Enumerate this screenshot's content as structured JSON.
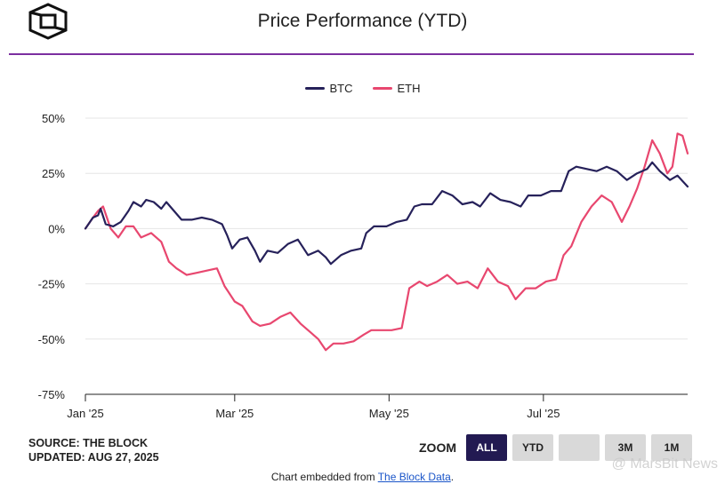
{
  "header": {
    "title": "Price Performance (YTD)"
  },
  "legend": {
    "btc_label": "BTC",
    "eth_label": "ETH"
  },
  "colors": {
    "btc": "#26215a",
    "eth": "#e8476f",
    "accent": "#7b2fa0"
  },
  "footer": {
    "source": "SOURCE: THE BLOCK",
    "updated": "UPDATED: AUG 27, 2025",
    "zoom_label": "ZOOM",
    "zoom_buttons": [
      "ALL",
      "YTD",
      "",
      "3M",
      "1M"
    ],
    "embed_prefix": "Chart embedded from ",
    "embed_link": "The Block Data",
    "embed_suffix": "."
  },
  "watermark": "@ MarsBit News",
  "chart_data": {
    "type": "line",
    "title": "Price Performance (YTD)",
    "xlabel": "",
    "ylabel": "",
    "ylim": [
      -75,
      50
    ],
    "yticks": [
      50,
      25,
      0,
      -25,
      -50,
      -75
    ],
    "ytick_labels": [
      "50%",
      "25%",
      "0%",
      "-25%",
      "-50%",
      "-75%"
    ],
    "xlim": [
      "2025-01-01",
      "2025-08-27"
    ],
    "xticks": [
      {
        "date": "2025-01-01",
        "label": "Jan '25"
      },
      {
        "date": "2025-03-01",
        "label": "Mar '25"
      },
      {
        "date": "2025-05-01",
        "label": "May '25"
      },
      {
        "date": "2025-07-01",
        "label": "Jul '25"
      }
    ],
    "grid": "horizontal",
    "legend_position": "top-center",
    "series": [
      {
        "name": "BTC",
        "color": "#26215a",
        "points": [
          [
            "2025-01-01",
            0
          ],
          [
            "2025-01-04",
            5
          ],
          [
            "2025-01-06",
            6
          ],
          [
            "2025-01-07",
            9
          ],
          [
            "2025-01-09",
            2
          ],
          [
            "2025-01-12",
            1
          ],
          [
            "2025-01-15",
            3
          ],
          [
            "2025-01-18",
            8
          ],
          [
            "2025-01-20",
            12
          ],
          [
            "2025-01-23",
            10
          ],
          [
            "2025-01-25",
            13
          ],
          [
            "2025-01-28",
            12
          ],
          [
            "2025-01-31",
            9
          ],
          [
            "2025-02-02",
            12
          ],
          [
            "2025-02-05",
            8
          ],
          [
            "2025-02-08",
            4
          ],
          [
            "2025-02-12",
            4
          ],
          [
            "2025-02-16",
            5
          ],
          [
            "2025-02-20",
            4
          ],
          [
            "2025-02-24",
            2
          ],
          [
            "2025-02-26",
            -3
          ],
          [
            "2025-02-28",
            -9
          ],
          [
            "2025-03-03",
            -5
          ],
          [
            "2025-03-06",
            -4
          ],
          [
            "2025-03-09",
            -10
          ],
          [
            "2025-03-11",
            -15
          ],
          [
            "2025-03-14",
            -10
          ],
          [
            "2025-03-18",
            -11
          ],
          [
            "2025-03-22",
            -7
          ],
          [
            "2025-03-26",
            -5
          ],
          [
            "2025-03-30",
            -12
          ],
          [
            "2025-04-03",
            -10
          ],
          [
            "2025-04-06",
            -13
          ],
          [
            "2025-04-08",
            -16
          ],
          [
            "2025-04-12",
            -12
          ],
          [
            "2025-04-16",
            -10
          ],
          [
            "2025-04-20",
            -9
          ],
          [
            "2025-04-22",
            -2
          ],
          [
            "2025-04-25",
            1
          ],
          [
            "2025-04-30",
            1
          ],
          [
            "2025-05-04",
            3
          ],
          [
            "2025-05-08",
            4
          ],
          [
            "2025-05-11",
            10
          ],
          [
            "2025-05-14",
            11
          ],
          [
            "2025-05-18",
            11
          ],
          [
            "2025-05-22",
            17
          ],
          [
            "2025-05-26",
            15
          ],
          [
            "2025-05-30",
            11
          ],
          [
            "2025-06-03",
            12
          ],
          [
            "2025-06-06",
            10
          ],
          [
            "2025-06-10",
            16
          ],
          [
            "2025-06-14",
            13
          ],
          [
            "2025-06-18",
            12
          ],
          [
            "2025-06-22",
            10
          ],
          [
            "2025-06-25",
            15
          ],
          [
            "2025-06-30",
            15
          ],
          [
            "2025-07-04",
            17
          ],
          [
            "2025-07-08",
            17
          ],
          [
            "2025-07-11",
            26
          ],
          [
            "2025-07-14",
            28
          ],
          [
            "2025-07-18",
            27
          ],
          [
            "2025-07-22",
            26
          ],
          [
            "2025-07-26",
            28
          ],
          [
            "2025-07-30",
            26
          ],
          [
            "2025-08-03",
            22
          ],
          [
            "2025-08-07",
            25
          ],
          [
            "2025-08-11",
            27
          ],
          [
            "2025-08-13",
            30
          ],
          [
            "2025-08-16",
            26
          ],
          [
            "2025-08-20",
            22
          ],
          [
            "2025-08-23",
            24
          ],
          [
            "2025-08-27",
            19
          ]
        ]
      },
      {
        "name": "ETH",
        "color": "#e8476f",
        "points": [
          [
            "2025-01-01",
            0
          ],
          [
            "2025-01-04",
            5
          ],
          [
            "2025-01-06",
            8
          ],
          [
            "2025-01-08",
            10
          ],
          [
            "2025-01-11",
            0
          ],
          [
            "2025-01-14",
            -4
          ],
          [
            "2025-01-17",
            1
          ],
          [
            "2025-01-20",
            1
          ],
          [
            "2025-01-23",
            -4
          ],
          [
            "2025-01-27",
            -2
          ],
          [
            "2025-01-31",
            -6
          ],
          [
            "2025-02-03",
            -15
          ],
          [
            "2025-02-06",
            -18
          ],
          [
            "2025-02-10",
            -21
          ],
          [
            "2025-02-14",
            -20
          ],
          [
            "2025-02-18",
            -19
          ],
          [
            "2025-02-22",
            -18
          ],
          [
            "2025-02-25",
            -26
          ],
          [
            "2025-03-01",
            -33
          ],
          [
            "2025-03-04",
            -35
          ],
          [
            "2025-03-08",
            -42
          ],
          [
            "2025-03-11",
            -44
          ],
          [
            "2025-03-15",
            -43
          ],
          [
            "2025-03-19",
            -40
          ],
          [
            "2025-03-23",
            -38
          ],
          [
            "2025-03-27",
            -43
          ],
          [
            "2025-03-31",
            -47
          ],
          [
            "2025-04-03",
            -50
          ],
          [
            "2025-04-06",
            -55
          ],
          [
            "2025-04-09",
            -52
          ],
          [
            "2025-04-13",
            -52
          ],
          [
            "2025-04-17",
            -51
          ],
          [
            "2025-04-21",
            -48
          ],
          [
            "2025-04-24",
            -46
          ],
          [
            "2025-04-28",
            -46
          ],
          [
            "2025-05-02",
            -46
          ],
          [
            "2025-05-06",
            -45
          ],
          [
            "2025-05-09",
            -27
          ],
          [
            "2025-05-13",
            -24
          ],
          [
            "2025-05-16",
            -26
          ],
          [
            "2025-05-20",
            -24
          ],
          [
            "2025-05-24",
            -21
          ],
          [
            "2025-05-28",
            -25
          ],
          [
            "2025-06-01",
            -24
          ],
          [
            "2025-06-05",
            -27
          ],
          [
            "2025-06-09",
            -18
          ],
          [
            "2025-06-13",
            -24
          ],
          [
            "2025-06-17",
            -26
          ],
          [
            "2025-06-20",
            -32
          ],
          [
            "2025-06-24",
            -27
          ],
          [
            "2025-06-28",
            -27
          ],
          [
            "2025-07-02",
            -24
          ],
          [
            "2025-07-06",
            -23
          ],
          [
            "2025-07-09",
            -12
          ],
          [
            "2025-07-12",
            -8
          ],
          [
            "2025-07-16",
            3
          ],
          [
            "2025-07-20",
            10
          ],
          [
            "2025-07-24",
            15
          ],
          [
            "2025-07-28",
            12
          ],
          [
            "2025-08-01",
            3
          ],
          [
            "2025-08-04",
            10
          ],
          [
            "2025-08-07",
            18
          ],
          [
            "2025-08-10",
            28
          ],
          [
            "2025-08-13",
            40
          ],
          [
            "2025-08-16",
            34
          ],
          [
            "2025-08-19",
            25
          ],
          [
            "2025-08-21",
            28
          ],
          [
            "2025-08-23",
            43
          ],
          [
            "2025-08-25",
            42
          ],
          [
            "2025-08-27",
            34
          ]
        ]
      }
    ]
  }
}
